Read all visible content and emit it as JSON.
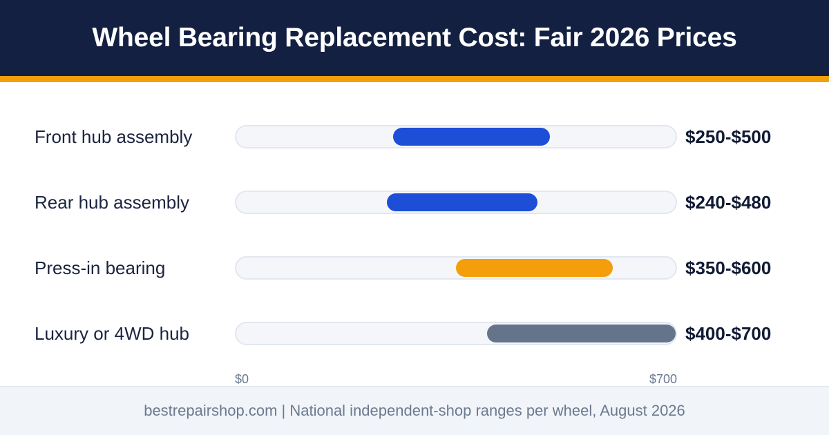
{
  "title": "Wheel Bearing Replacement Cost: Fair 2026 Prices",
  "footer": "bestrepairshop.com | National independent-shop ranges per wheel, August 2026",
  "chart_data": {
    "type": "bar",
    "orientation": "horizontal",
    "representation": "floating range bars",
    "xlim": [
      0,
      700
    ],
    "x_tick_labels": [
      "$0",
      "$700"
    ],
    "categories": [
      "Front hub assembly",
      "Rear hub assembly",
      "Press-in bearing",
      "Luxury or 4WD hub"
    ],
    "ranges": [
      {
        "low": 250,
        "high": 500,
        "label": "$250-$500",
        "color": "#1d4ed8"
      },
      {
        "low": 240,
        "high": 480,
        "label": "$240-$480",
        "color": "#1d4ed8"
      },
      {
        "low": 350,
        "high": 600,
        "label": "$350-$600",
        "color": "#f59e0b"
      },
      {
        "low": 400,
        "high": 700,
        "label": "$400-$700",
        "color": "#64748b"
      }
    ]
  },
  "colors": {
    "header_bg": "#132041",
    "accent": "#f59e0b",
    "track_bg": "#f4f6fa",
    "footer_bg": "#f1f4f8"
  }
}
